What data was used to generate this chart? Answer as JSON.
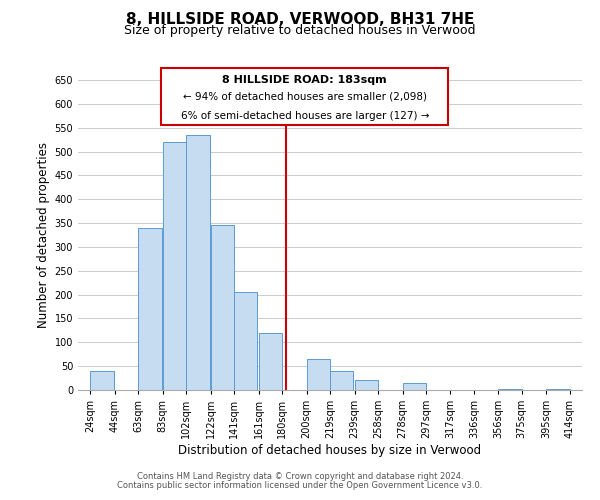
{
  "title": "8, HILLSIDE ROAD, VERWOOD, BH31 7HE",
  "subtitle": "Size of property relative to detached houses in Verwood",
  "xlabel": "Distribution of detached houses by size in Verwood",
  "ylabel": "Number of detached properties",
  "bar_left_edges": [
    24,
    44,
    63,
    83,
    102,
    122,
    141,
    161,
    180,
    200,
    219,
    239,
    258,
    278,
    297,
    317,
    336,
    356,
    375,
    395
  ],
  "bar_heights": [
    40,
    0,
    340,
    520,
    535,
    345,
    205,
    120,
    0,
    65,
    40,
    20,
    0,
    15,
    0,
    0,
    0,
    3,
    0,
    3
  ],
  "bar_widths": [
    19,
    19,
    19,
    19,
    19,
    19,
    19,
    19,
    19,
    19,
    19,
    19,
    19,
    19,
    19,
    19,
    19,
    19,
    19,
    19
  ],
  "bar_color": "#c6dcf0",
  "bar_edgecolor": "#5b9bd5",
  "vline_x": 183,
  "vline_color": "#cc0000",
  "ylim": [
    0,
    650
  ],
  "yticks": [
    0,
    50,
    100,
    150,
    200,
    250,
    300,
    350,
    400,
    450,
    500,
    550,
    600,
    650
  ],
  "xtick_labels": [
    "24sqm",
    "44sqm",
    "63sqm",
    "83sqm",
    "102sqm",
    "122sqm",
    "141sqm",
    "161sqm",
    "180sqm",
    "200sqm",
    "219sqm",
    "239sqm",
    "258sqm",
    "278sqm",
    "297sqm",
    "317sqm",
    "336sqm",
    "356sqm",
    "375sqm",
    "395sqm",
    "414sqm"
  ],
  "xtick_positions": [
    24,
    44,
    63,
    83,
    102,
    122,
    141,
    161,
    180,
    200,
    219,
    239,
    258,
    278,
    297,
    317,
    336,
    356,
    375,
    395,
    414
  ],
  "annotation_title": "8 HILLSIDE ROAD: 183sqm",
  "annotation_line1": "← 94% of detached houses are smaller (2,098)",
  "annotation_line2": "6% of semi-detached houses are larger (127) →",
  "footer1": "Contains HM Land Registry data © Crown copyright and database right 2024.",
  "footer2": "Contains public sector information licensed under the Open Government Licence v3.0.",
  "background_color": "#ffffff",
  "grid_color": "#cccccc",
  "title_fontsize": 11,
  "subtitle_fontsize": 9,
  "axis_label_fontsize": 8.5,
  "tick_fontsize": 7,
  "annotation_fontsize_title": 8,
  "annotation_fontsize_body": 7.5,
  "footer_fontsize": 6
}
